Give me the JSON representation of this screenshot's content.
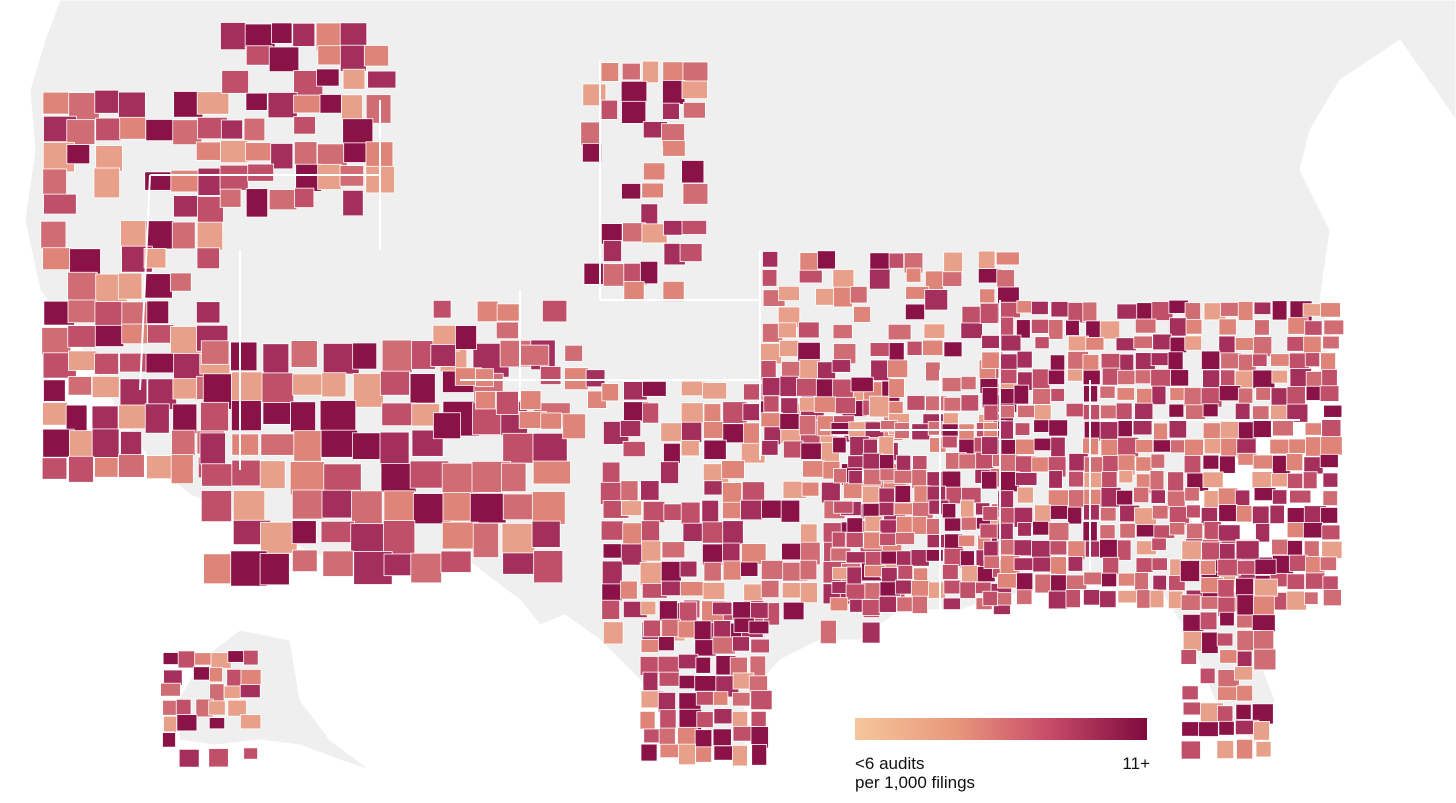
{
  "legend": {
    "min_label": "<6 audits",
    "min_sublabel": "per 1,000 filings",
    "max_label": "11+",
    "colors": [
      "#f6c79b",
      "#e8967c",
      "#c94f6a",
      "#7f0a3e"
    ]
  },
  "map": {
    "background_color": "#f0f0f0",
    "border_color": "#ffffff",
    "scale_colors": [
      "#e9a08a",
      "#df8479",
      "#d06c74",
      "#c0506a",
      "#a52f5c",
      "#8a1247"
    ]
  }
}
